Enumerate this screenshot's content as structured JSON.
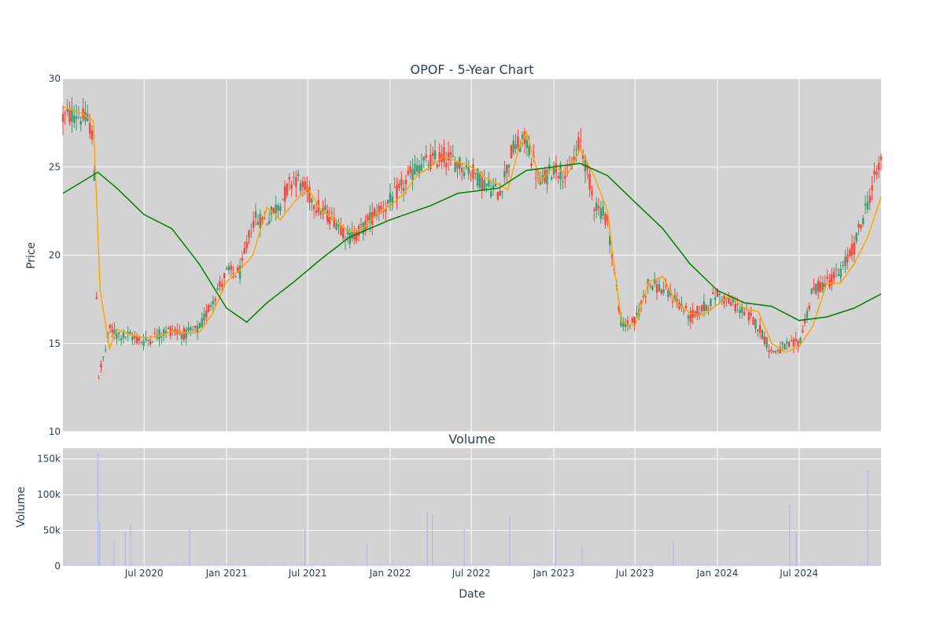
{
  "chart_data": [
    {
      "type": "candlestick",
      "title": "OPOF - 5-Year Chart",
      "ylabel": "Price",
      "ylim": [
        10,
        30
      ],
      "y_ticks": [
        10,
        15,
        20,
        25,
        30
      ],
      "x_range": [
        "2020-01-02",
        "2024-12-31"
      ],
      "grid": true,
      "colors": {
        "increasing": "#3d9970",
        "decreasing": "#ff4136",
        "ma_short": "#ffa500",
        "ma_long": "#008000",
        "plot_bg": "#d3d3d3"
      },
      "price_path": [
        [
          "2020-01-02",
          27.8
        ],
        [
          "2020-02-01",
          28.0
        ],
        [
          "2020-03-01",
          27.5
        ],
        [
          "2020-03-10",
          26.5
        ],
        [
          "2020-03-15",
          21.0
        ],
        [
          "2020-03-20",
          13.0
        ],
        [
          "2020-04-05",
          14.5
        ],
        [
          "2020-04-15",
          15.8
        ],
        [
          "2020-05-01",
          15.5
        ],
        [
          "2020-06-01",
          15.4
        ],
        [
          "2020-07-01",
          15.1
        ],
        [
          "2020-08-01",
          15.5
        ],
        [
          "2020-09-01",
          15.8
        ],
        [
          "2020-10-01",
          15.5
        ],
        [
          "2020-11-01",
          15.8
        ],
        [
          "2020-12-01",
          17.5
        ],
        [
          "2021-01-01",
          19.0
        ],
        [
          "2021-02-01",
          19.0
        ],
        [
          "2021-03-01",
          22.0
        ],
        [
          "2021-04-01",
          22.0
        ],
        [
          "2021-05-01",
          23.0
        ],
        [
          "2021-06-01",
          24.5
        ],
        [
          "2021-07-01",
          23.5
        ],
        [
          "2021-08-01",
          22.5
        ],
        [
          "2021-09-01",
          22.0
        ],
        [
          "2021-10-01",
          21.0
        ],
        [
          "2021-11-01",
          21.5
        ],
        [
          "2021-12-01",
          22.5
        ],
        [
          "2022-01-01",
          23.0
        ],
        [
          "2022-02-01",
          24.0
        ],
        [
          "2022-03-01",
          25.0
        ],
        [
          "2022-04-01",
          25.3
        ],
        [
          "2022-05-01",
          25.6
        ],
        [
          "2022-06-01",
          25.2
        ],
        [
          "2022-07-01",
          24.8
        ],
        [
          "2022-08-01",
          24.0
        ],
        [
          "2022-09-01",
          23.5
        ],
        [
          "2022-10-01",
          26.0
        ],
        [
          "2022-11-01",
          26.5
        ],
        [
          "2022-12-01",
          24.0
        ],
        [
          "2023-01-01",
          25.0
        ],
        [
          "2023-02-01",
          24.5
        ],
        [
          "2023-03-01",
          26.5
        ],
        [
          "2023-04-01",
          23.0
        ],
        [
          "2023-05-01",
          22.0
        ],
        [
          "2023-06-01",
          16.0
        ],
        [
          "2023-07-01",
          16.2
        ],
        [
          "2023-08-01",
          18.5
        ],
        [
          "2023-09-01",
          18.0
        ],
        [
          "2023-10-01",
          17.5
        ],
        [
          "2023-11-01",
          16.5
        ],
        [
          "2023-12-01",
          17.0
        ],
        [
          "2024-01-01",
          17.8
        ],
        [
          "2024-02-01",
          17.3
        ],
        [
          "2024-03-01",
          16.8
        ],
        [
          "2024-04-01",
          16.0
        ],
        [
          "2024-05-01",
          14.5
        ],
        [
          "2024-06-01",
          14.8
        ],
        [
          "2024-07-01",
          15.0
        ],
        [
          "2024-08-01",
          18.0
        ],
        [
          "2024-09-01",
          18.5
        ],
        [
          "2024-10-01",
          19.0
        ],
        [
          "2024-11-01",
          20.5
        ],
        [
          "2024-12-01",
          23.0
        ],
        [
          "2024-12-31",
          25.5
        ]
      ],
      "ma_short": [
        [
          "2020-01-02",
          28.4
        ],
        [
          "2020-02-15",
          28.0
        ],
        [
          "2020-03-10",
          27.6
        ],
        [
          "2020-03-25",
          18.0
        ],
        [
          "2020-04-15",
          14.7
        ],
        [
          "2020-05-01",
          15.8
        ],
        [
          "2020-06-01",
          15.5
        ],
        [
          "2020-07-01",
          15.3
        ],
        [
          "2020-08-01",
          15.4
        ],
        [
          "2020-09-01",
          15.7
        ],
        [
          "2020-10-01",
          15.6
        ],
        [
          "2020-11-01",
          15.6
        ],
        [
          "2020-12-01",
          16.7
        ],
        [
          "2021-01-01",
          18.5
        ],
        [
          "2021-02-01",
          19.2
        ],
        [
          "2021-03-01",
          20.0
        ],
        [
          "2021-04-01",
          22.7
        ],
        [
          "2021-05-01",
          22.0
        ],
        [
          "2021-06-01",
          23.0
        ],
        [
          "2021-07-01",
          23.8
        ],
        [
          "2021-08-01",
          22.5
        ],
        [
          "2021-09-01",
          22.0
        ],
        [
          "2021-10-01",
          21.3
        ],
        [
          "2021-11-01",
          21.5
        ],
        [
          "2021-12-01",
          22.3
        ],
        [
          "2022-01-01",
          22.8
        ],
        [
          "2022-02-01",
          23.5
        ],
        [
          "2022-03-01",
          24.5
        ],
        [
          "2022-04-01",
          25.0
        ],
        [
          "2022-05-01",
          25.6
        ],
        [
          "2022-06-01",
          25.3
        ],
        [
          "2022-07-01",
          25.0
        ],
        [
          "2022-08-01",
          24.4
        ],
        [
          "2022-09-01",
          24.0
        ],
        [
          "2022-09-20",
          23.7
        ],
        [
          "2022-10-15",
          26.0
        ],
        [
          "2022-11-01",
          27.0
        ],
        [
          "2022-12-01",
          24.2
        ],
        [
          "2023-01-01",
          25.0
        ],
        [
          "2023-02-01",
          24.6
        ],
        [
          "2023-03-01",
          26.0
        ],
        [
          "2023-04-01",
          24.5
        ],
        [
          "2023-05-01",
          22.5
        ],
        [
          "2023-05-15",
          19.5
        ],
        [
          "2023-06-01",
          16.2
        ],
        [
          "2023-07-01",
          16.0
        ],
        [
          "2023-08-01",
          18.5
        ],
        [
          "2023-09-01",
          18.8
        ],
        [
          "2023-10-01",
          17.3
        ],
        [
          "2023-11-01",
          16.7
        ],
        [
          "2023-12-01",
          16.6
        ],
        [
          "2024-01-01",
          17.2
        ],
        [
          "2024-02-01",
          17.7
        ],
        [
          "2024-03-01",
          17.0
        ],
        [
          "2024-04-01",
          16.8
        ],
        [
          "2024-05-01",
          15.0
        ],
        [
          "2024-06-01",
          14.5
        ],
        [
          "2024-07-01",
          14.8
        ],
        [
          "2024-08-01",
          16.0
        ],
        [
          "2024-09-01",
          18.4
        ],
        [
          "2024-10-01",
          18.4
        ],
        [
          "2024-11-01",
          19.5
        ],
        [
          "2024-12-01",
          21.0
        ],
        [
          "2024-12-31",
          23.3
        ]
      ],
      "ma_long": [
        [
          "2020-01-02",
          23.5
        ],
        [
          "2020-03-20",
          24.7
        ],
        [
          "2020-05-01",
          23.8
        ],
        [
          "2020-07-01",
          22.3
        ],
        [
          "2020-09-01",
          21.5
        ],
        [
          "2020-11-01",
          19.5
        ],
        [
          "2021-01-01",
          17.0
        ],
        [
          "2021-02-15",
          16.2
        ],
        [
          "2021-04-01",
          17.3
        ],
        [
          "2021-06-01",
          18.5
        ],
        [
          "2021-08-01",
          19.8
        ],
        [
          "2021-10-01",
          21.0
        ],
        [
          "2022-01-01",
          22.0
        ],
        [
          "2022-04-01",
          22.8
        ],
        [
          "2022-06-01",
          23.5
        ],
        [
          "2022-09-01",
          23.8
        ],
        [
          "2022-11-01",
          24.8
        ],
        [
          "2023-01-01",
          25.0
        ],
        [
          "2023-03-01",
          25.2
        ],
        [
          "2023-05-01",
          24.5
        ],
        [
          "2023-07-01",
          23.0
        ],
        [
          "2023-09-01",
          21.5
        ],
        [
          "2023-11-01",
          19.5
        ],
        [
          "2024-01-01",
          18.0
        ],
        [
          "2024-03-01",
          17.3
        ],
        [
          "2024-05-01",
          17.1
        ],
        [
          "2024-07-01",
          16.3
        ],
        [
          "2024-09-01",
          16.5
        ],
        [
          "2024-11-01",
          17.0
        ],
        [
          "2024-12-31",
          17.8
        ]
      ]
    },
    {
      "type": "bar",
      "title": "Volume",
      "xlabel": "Date",
      "ylabel": "Volume",
      "ylim": [
        0,
        165000
      ],
      "y_ticks": [
        0,
        50000,
        100000,
        150000
      ],
      "y_tick_labels": [
        "0",
        "50k",
        "100k",
        "150k"
      ],
      "x_ticks": [
        "2020-07-01",
        "2021-01-01",
        "2021-07-01",
        "2022-01-01",
        "2022-07-01",
        "2023-01-01",
        "2023-07-01",
        "2024-01-01",
        "2024-07-01"
      ],
      "x_tick_labels": [
        "Jul 2020",
        "Jan 2021",
        "Jul 2021",
        "Jan 2022",
        "Jul 2022",
        "Jan 2023",
        "Jul 2023",
        "Jan 2024",
        "Jul 2024"
      ],
      "bar_color": "#c8c8f0",
      "spikes": [
        [
          "2020-03-20",
          160000
        ],
        [
          "2020-03-24",
          62000
        ],
        [
          "2020-04-25",
          35000
        ],
        [
          "2020-05-20",
          48000
        ],
        [
          "2020-06-01",
          58000
        ],
        [
          "2020-10-10",
          52000
        ],
        [
          "2021-06-25",
          52000
        ],
        [
          "2021-11-10",
          34000
        ],
        [
          "2022-03-25",
          76000
        ],
        [
          "2022-04-05",
          72000
        ],
        [
          "2022-06-15",
          52000
        ],
        [
          "2022-09-25",
          70000
        ],
        [
          "2023-01-05",
          52000
        ],
        [
          "2023-03-05",
          26000
        ],
        [
          "2023-09-25",
          35000
        ],
        [
          "2024-06-10",
          85000
        ],
        [
          "2024-06-25",
          48000
        ],
        [
          "2024-12-01",
          135000
        ]
      ]
    }
  ]
}
